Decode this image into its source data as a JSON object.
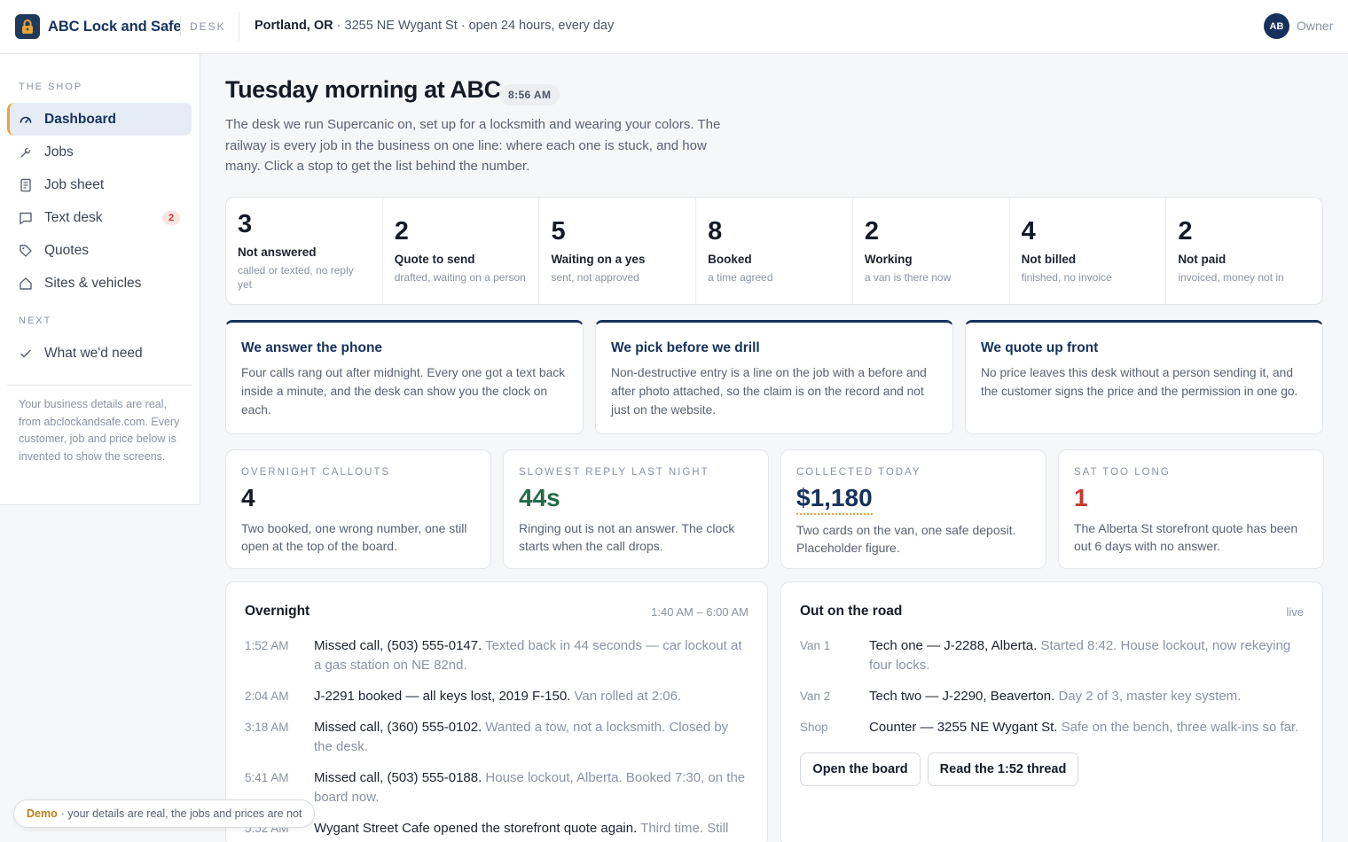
{
  "header": {
    "brand": "ABC Lock and Safe",
    "tag": "DESK",
    "city": "Portland, OR",
    "address": " · 3255 NE Wygant St · open 24 hours, every day",
    "avatar_initials": "AB",
    "role": "Owner"
  },
  "sidebar": {
    "section_shop": "THE SHOP",
    "items": [
      {
        "label": "Dashboard",
        "icon": "gauge-icon",
        "active": true
      },
      {
        "label": "Jobs",
        "icon": "wrench-icon"
      },
      {
        "label": "Job sheet",
        "icon": "sheet-icon"
      },
      {
        "label": "Text desk",
        "icon": "message-icon",
        "badge": "2"
      },
      {
        "label": "Quotes",
        "icon": "tag-icon"
      },
      {
        "label": "Sites & vehicles",
        "icon": "home-icon"
      }
    ],
    "section_next": "NEXT",
    "next_items": [
      {
        "label": "What we'd need",
        "icon": "check-icon"
      }
    ],
    "note": "Your business details are real, from abclockandsafe.com. Every customer, job and price below is invented to show the screens."
  },
  "main": {
    "title": "Tuesday morning at ABC",
    "time": "8:56 AM",
    "intro": "The desk we run Supercanic on, set up for a locksmith and wearing your colors. The railway is every job in the business on one line: where each one is stuck, and how many. Click a stop to get the list behind the number."
  },
  "railway": [
    {
      "count": "3",
      "label": "Not answered",
      "sub": "called or texted, no reply yet"
    },
    {
      "count": "2",
      "label": "Quote to send",
      "sub": "drafted, waiting on a person"
    },
    {
      "count": "5",
      "label": "Waiting on a yes",
      "sub": "sent, not approved"
    },
    {
      "count": "8",
      "label": "Booked",
      "sub": "a time agreed"
    },
    {
      "count": "2",
      "label": "Working",
      "sub": "a van is there now"
    },
    {
      "count": "4",
      "label": "Not billed",
      "sub": "finished, no invoice"
    },
    {
      "count": "2",
      "label": "Not paid",
      "sub": "invoiced, money not in"
    }
  ],
  "promises": [
    {
      "title": "We answer the phone",
      "body": "Four calls rang out after midnight. Every one got a text back inside a minute, and the desk can show you the clock on each."
    },
    {
      "title": "We pick before we drill",
      "body": "Non-destructive entry is a line on the job with a before and after photo attached, so the claim is on the record and not just on the website."
    },
    {
      "title": "We quote up front",
      "body": "No price leaves this desk without a person sending it, and the customer signs the price and the permission in one go."
    }
  ],
  "stats": [
    {
      "caption": "OVERNIGHT CALLOUTS",
      "value": "4",
      "color": "#141b27",
      "desc": "Two booked, one wrong number, one still open at the top of the board."
    },
    {
      "caption": "SLOWEST REPLY LAST NIGHT",
      "value": "44s",
      "color": "#1f6b45",
      "desc": "Ringing out is not an answer. The clock starts when the call drops."
    },
    {
      "caption": "COLLECTED TODAY",
      "value": "$1,180",
      "color": "#16325c",
      "desc": "Two cards on the van, one safe deposit. Placeholder figure."
    },
    {
      "caption": "SAT TOO LONG",
      "value": "1",
      "color": "#c8372a",
      "desc": "The Alberta St storefront quote has been out 6 days with no answer."
    }
  ],
  "overnight": {
    "title": "Overnight",
    "range": "1:40 AM – 6:00 AM",
    "rows": [
      {
        "time": "1:52 AM",
        "lead": "Missed call, (503) 555-0147.",
        "rest": " Texted back in 44 seconds — car lockout at a gas station on NE 82nd."
      },
      {
        "time": "2:04 AM",
        "lead": "J-2291 booked — all keys lost, 2019 F-150.",
        "rest": " Van rolled at 2:06."
      },
      {
        "time": "3:18 AM",
        "lead": "Missed call, (360) 555-0102.",
        "rest": " Wanted a tow, not a locksmith. Closed by the desk."
      },
      {
        "time": "5:41 AM",
        "lead": "Missed call, (503) 555-0188.",
        "rest": " House lockout, Alberta. Booked 7:30, on the board now."
      },
      {
        "time": "5:52 AM",
        "lead": "Wygant Street Cafe opened the storefront quote again.",
        "rest": " Third time. Still"
      }
    ]
  },
  "road": {
    "title": "Out on the road",
    "status": "live",
    "rows": [
      {
        "unit": "Van 1",
        "lead": "Tech one — J-2288, Alberta.",
        "rest": " Started 8:42. House lockout, now rekeying four locks."
      },
      {
        "unit": "Van 2",
        "lead": "Tech two — J-2290, Beaverton.",
        "rest": " Day 2 of 3, master key system."
      },
      {
        "unit": "Shop",
        "lead": "Counter — 3255 NE Wygant St.",
        "rest": " Safe on the bench, three walk-ins so far."
      }
    ],
    "btn_board": "Open the board",
    "btn_thread": "Read the 1:52 thread"
  },
  "demo": {
    "label": "Demo",
    "text": " · your details are real, the jobs and prices are not"
  }
}
